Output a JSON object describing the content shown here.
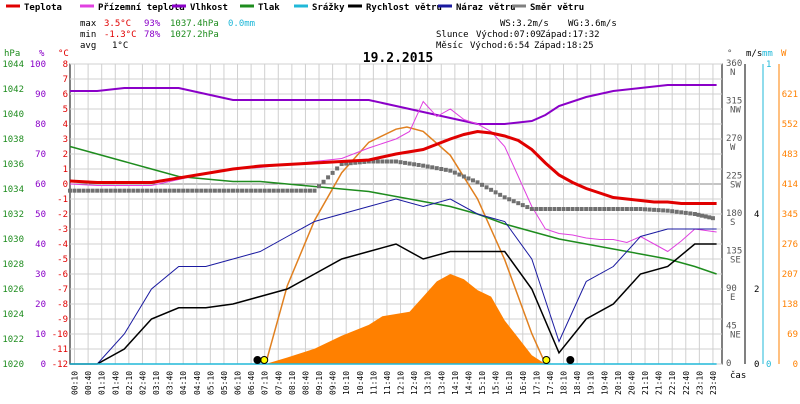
{
  "legend": [
    {
      "label": "Teplota",
      "color": "#e00000"
    },
    {
      "label": "Přízemní teplota",
      "color": "#e040e0"
    },
    {
      "label": "Vlhkost",
      "color": "#8a00c8"
    },
    {
      "label": "Tlak",
      "color": "#1e8c1e"
    },
    {
      "label": "Srážky",
      "color": "#20b8d8"
    },
    {
      "label": "Rychlost větru",
      "color": "#000000"
    },
    {
      "label": "Náraz větru",
      "color": "#1a1aa0"
    },
    {
      "label": "Směr větru",
      "color": "#808080"
    }
  ],
  "stats": {
    "max_label": "max",
    "max_temp": "3.5°C",
    "max_hum": "93%",
    "max_press": "1037.4hPa",
    "max_rain": "0.0mm",
    "min_label": "min",
    "min_temp": "-1.3°C",
    "min_hum": "78%",
    "min_press": "1027.2hPa",
    "avg_label": "avg",
    "avg_temp": "1°C"
  },
  "wind_info": {
    "ws": "WS:3.2m/s",
    "wg": "WG:3.6m/s"
  },
  "sun": {
    "label": "Slunce",
    "rise": "Východ:07:09",
    "set": "Západ:17:32"
  },
  "moon": {
    "label": "Měsíc",
    "rise": "Východ:6:54",
    "set": "Západ:18:25"
  },
  "axis_units": {
    "hpa": "hPa",
    "pct": "%",
    "degc": "°C",
    "deg": "°",
    "ms": "m/s",
    "mm": "mm",
    "w": "W",
    "time": "čas"
  },
  "colors": {
    "temperature": "#e00000",
    "ground_temp": "#e040e0",
    "humidity": "#8a00c8",
    "pressure": "#1e8c1e",
    "rain": "#20b8d8",
    "wind_speed": "#000000",
    "wind_gust": "#1a1aa0",
    "wind_dir": "#707070",
    "solar": "#ff8000",
    "sun_curve": "#e08020",
    "grid": "#d0d0d0"
  },
  "chart_data": {
    "type": "line",
    "title": "19.2.2015",
    "xlabel": "čas",
    "x_ticks": [
      "00:10",
      "00:40",
      "01:10",
      "01:40",
      "02:10",
      "02:40",
      "03:10",
      "03:40",
      "04:10",
      "04:40",
      "05:10",
      "05:40",
      "06:10",
      "06:40",
      "07:10",
      "07:40",
      "08:10",
      "08:40",
      "09:10",
      "09:40",
      "10:10",
      "10:40",
      "11:10",
      "11:40",
      "12:10",
      "12:40",
      "13:10",
      "13:40",
      "14:10",
      "14:40",
      "15:10",
      "15:40",
      "16:10",
      "16:40",
      "17:10",
      "17:40",
      "18:10",
      "18:40",
      "19:10",
      "19:40",
      "20:10",
      "20:40",
      "21:10",
      "21:40",
      "22:10",
      "22:40",
      "23:10",
      "23:40"
    ],
    "axes": {
      "pressure_hpa": {
        "ticks": [
          "1044",
          "1042",
          "1040",
          "1038",
          "1036",
          "1034",
          "1032",
          "1030",
          "1028",
          "1026",
          "1024",
          "1022",
          "1020"
        ],
        "range": [
          1020,
          1044
        ]
      },
      "humidity_pct": {
        "ticks": [
          "100",
          "90",
          "80",
          "70",
          "60",
          "50",
          "40",
          "30",
          "20",
          "10",
          "0"
        ],
        "range": [
          0,
          100
        ]
      },
      "temperature_c": {
        "ticks": [
          "8",
          "7",
          "6",
          "5",
          "4",
          "3",
          "2",
          "1",
          "0",
          "-1",
          "-2",
          "-3",
          "-4",
          "-5",
          "-6",
          "-7",
          "-8",
          "-9",
          "-10",
          "-11",
          "-12"
        ],
        "range": [
          -12,
          8
        ]
      },
      "wind_dir_deg": {
        "ticks": [
          {
            "deg": "360",
            "dir": "N"
          },
          {
            "deg": "315",
            "dir": "NW"
          },
          {
            "deg": "270",
            "dir": "W"
          },
          {
            "deg": "225",
            "dir": "SW"
          },
          {
            "deg": "180",
            "dir": "S"
          },
          {
            "deg": "135",
            "dir": "SE"
          },
          {
            "deg": "90",
            "dir": "E"
          },
          {
            "deg": "45",
            "dir": "NE"
          },
          {
            "deg": "0",
            "dir": ""
          }
        ],
        "range": [
          0,
          360
        ]
      },
      "wind_ms": {
        "ticks": [
          "4",
          "2",
          "0"
        ],
        "range": [
          0,
          8
        ]
      },
      "rain_mm": {
        "ticks": [
          "1",
          "0"
        ],
        "range": [
          0,
          1
        ]
      },
      "solar_w": {
        "ticks": [
          "621",
          "552",
          "483",
          "414",
          "345",
          "276",
          "207",
          "138",
          "69",
          "0"
        ],
        "range": [
          0,
          690
        ]
      }
    },
    "series": [
      {
        "name": "Teplota",
        "unit": "°C",
        "x": [
          0,
          1,
          2,
          3,
          4,
          5,
          6,
          7,
          8,
          9,
          10,
          11,
          12,
          13,
          14,
          14.5,
          15,
          15.5,
          16,
          16.5,
          17,
          17.5,
          18,
          18.5,
          19,
          19.5,
          20,
          20.5,
          21,
          21.5,
          22,
          22.5,
          23,
          23.8
        ],
        "values": [
          0.2,
          0.1,
          0.1,
          0.1,
          0.4,
          0.7,
          1.0,
          1.2,
          1.3,
          1.4,
          1.5,
          1.6,
          2.0,
          2.3,
          3.0,
          3.3,
          3.5,
          3.4,
          3.2,
          2.9,
          2.3,
          1.4,
          0.6,
          0.1,
          -0.3,
          -0.6,
          -0.9,
          -1.0,
          -1.1,
          -1.2,
          -1.2,
          -1.3,
          -1.3,
          -1.3
        ]
      },
      {
        "name": "Přízemní teplota",
        "unit": "°C",
        "x": [
          0,
          1,
          2,
          3,
          4,
          5,
          6,
          7,
          8,
          9,
          10,
          11,
          12,
          12.5,
          13,
          13.5,
          14,
          14.5,
          15,
          15.5,
          16,
          16.5,
          17,
          17.5,
          18,
          18.5,
          19,
          19.5,
          20,
          20.5,
          21,
          21.5,
          22,
          22.5,
          23,
          23.8
        ],
        "values": [
          0.0,
          -0.1,
          -0.1,
          -0.1,
          0.3,
          0.7,
          1.0,
          1.1,
          1.3,
          1.5,
          1.7,
          2.4,
          3.0,
          3.5,
          5.5,
          4.5,
          5.0,
          4.3,
          4.0,
          3.5,
          2.5,
          0.5,
          -1.5,
          -3.0,
          -3.3,
          -3.4,
          -3.6,
          -3.7,
          -3.7,
          -3.9,
          -3.5,
          -4.0,
          -4.5,
          -3.8,
          -3.0,
          -3.2
        ]
      },
      {
        "name": "Vlhkost",
        "unit": "%",
        "x": [
          0,
          1,
          2,
          3,
          4,
          5,
          6,
          7,
          8,
          9,
          10,
          11,
          12,
          13,
          14,
          15,
          16,
          17,
          17.5,
          18,
          19,
          20,
          21,
          22,
          23,
          23.8
        ],
        "values": [
          91,
          91,
          92,
          92,
          92,
          90,
          88,
          88,
          88,
          88,
          88,
          88,
          86,
          84,
          82,
          80,
          80,
          81,
          83,
          86,
          89,
          91,
          92,
          93,
          93,
          93
        ]
      },
      {
        "name": "Tlak",
        "unit": "hPa",
        "x": [
          0,
          1,
          2,
          3,
          4,
          5,
          6,
          7,
          8,
          9,
          10,
          11,
          12,
          13,
          14,
          15,
          16,
          17,
          18,
          19,
          20,
          21,
          22,
          23,
          23.8
        ],
        "values": [
          1037.4,
          1036.8,
          1036.2,
          1035.6,
          1035.0,
          1034.8,
          1034.6,
          1034.6,
          1034.4,
          1034.2,
          1034.0,
          1033.8,
          1033.4,
          1033.0,
          1032.6,
          1032.0,
          1031.2,
          1030.6,
          1030.0,
          1029.6,
          1029.2,
          1028.8,
          1028.4,
          1027.8,
          1027.2
        ]
      },
      {
        "name": "Rychlost větru",
        "unit": "m/s",
        "x": [
          0,
          1,
          2,
          3,
          4,
          5,
          6,
          7,
          8,
          9,
          10,
          11,
          12,
          13,
          14,
          15,
          16,
          17,
          18,
          19,
          20,
          21,
          22,
          23,
          23.8
        ],
        "values": [
          0,
          0,
          0.4,
          1.2,
          1.5,
          1.5,
          1.6,
          1.8,
          2.0,
          2.4,
          2.8,
          3.0,
          3.2,
          2.8,
          3.0,
          3.0,
          3.0,
          2.0,
          0.3,
          1.2,
          1.6,
          2.4,
          2.6,
          3.2,
          3.2
        ]
      },
      {
        "name": "Náraz větru",
        "unit": "m/s",
        "x": [
          0,
          1,
          2,
          3,
          4,
          5,
          6,
          7,
          8,
          9,
          10,
          11,
          12,
          13,
          14,
          15,
          16,
          17,
          18,
          19,
          20,
          21,
          22,
          23,
          23.8
        ],
        "values": [
          0,
          0,
          0.8,
          2.0,
          2.6,
          2.6,
          2.8,
          3.0,
          3.4,
          3.8,
          4.0,
          4.2,
          4.4,
          4.2,
          4.4,
          4.0,
          3.8,
          2.8,
          0.6,
          2.2,
          2.6,
          3.4,
          3.6,
          3.6,
          3.6
        ]
      },
      {
        "name": "Směr větru",
        "unit": "°",
        "x": [
          0,
          1,
          2,
          3,
          4,
          5,
          6,
          7,
          8,
          9,
          10,
          11,
          12,
          13,
          14,
          15,
          16,
          17,
          18,
          19,
          20,
          21,
          22,
          23,
          23.8
        ],
        "values": [
          208,
          208,
          208,
          208,
          208,
          208,
          208,
          208,
          208,
          208,
          240,
          243,
          243,
          238,
          232,
          218,
          200,
          186,
          186,
          186,
          186,
          186,
          184,
          180,
          174
        ]
      },
      {
        "name": "Srážky",
        "unit": "mm",
        "x": [
          0,
          23.8
        ],
        "values": [
          0,
          0
        ]
      },
      {
        "name": "Sluneční záření",
        "unit": "W",
        "x": [
          7.2,
          8,
          9,
          10,
          11,
          11.5,
          12,
          12.5,
          13,
          13.5,
          14,
          14.5,
          15,
          15.5,
          16,
          16.5,
          17,
          17.5
        ],
        "values": [
          0,
          15,
          35,
          65,
          90,
          110,
          115,
          120,
          155,
          190,
          207,
          195,
          170,
          155,
          100,
          60,
          20,
          0
        ]
      },
      {
        "name": "Teoretické záření",
        "unit": "W",
        "x": [
          7.2,
          8,
          9,
          10,
          11,
          12,
          12.4,
          13,
          14,
          15,
          16,
          17,
          17.5
        ],
        "values": [
          0,
          180,
          330,
          440,
          510,
          540,
          545,
          535,
          480,
          380,
          240,
          70,
          0
        ]
      }
    ]
  }
}
